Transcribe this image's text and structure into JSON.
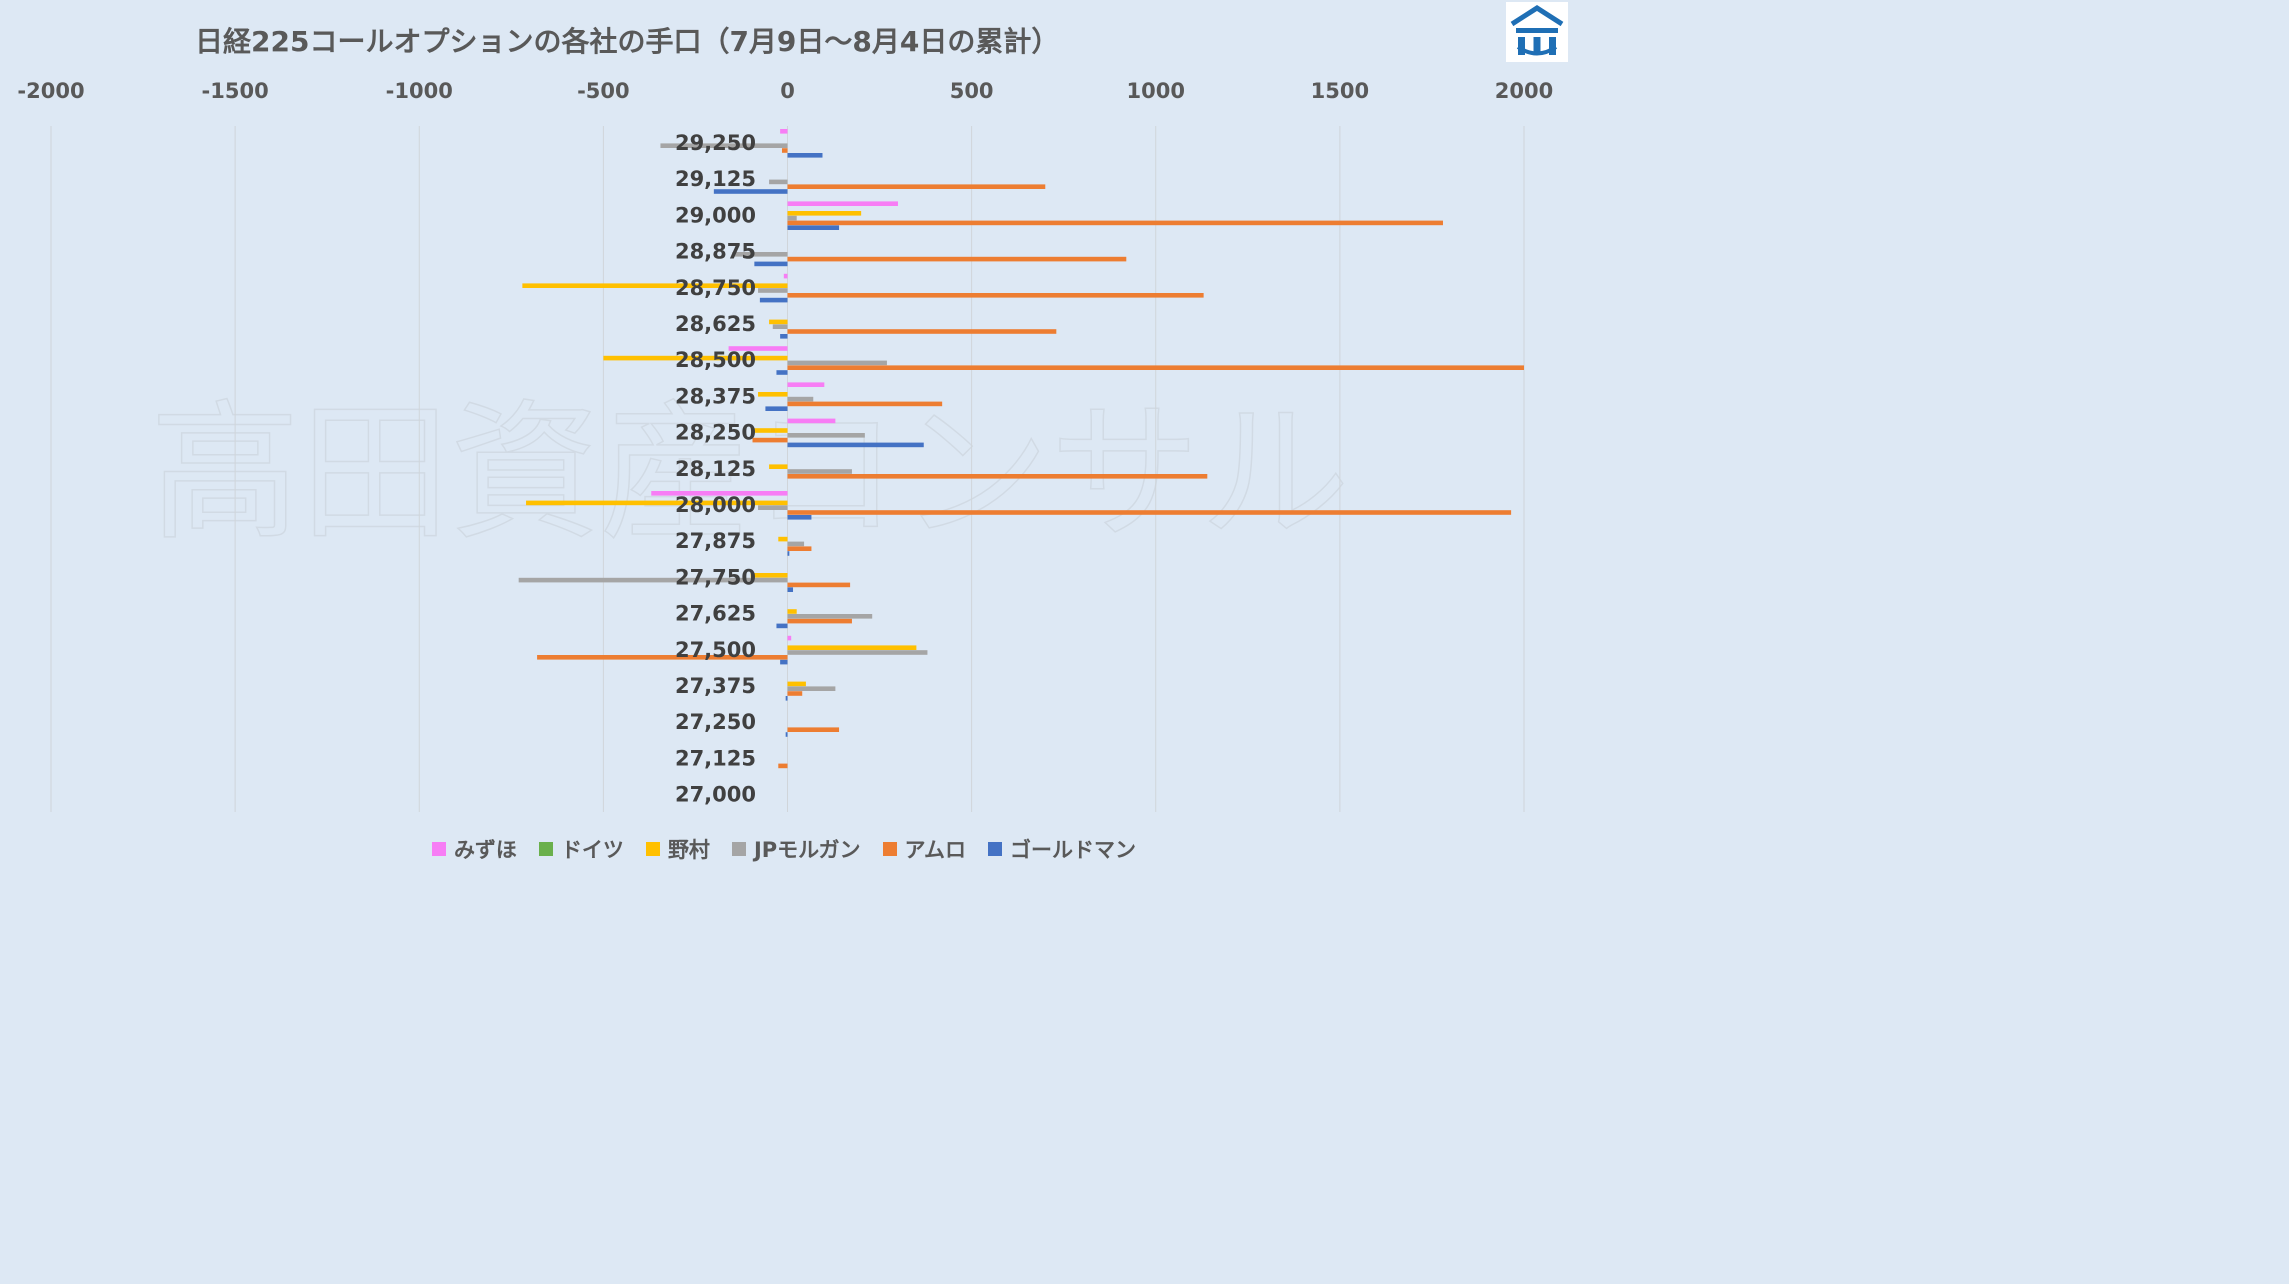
{
  "chart_data": {
    "type": "bar",
    "orientation": "horizontal",
    "title": "日経225コールオプションの各社の手口（7月9日～8月4日の累計）",
    "watermark": "高田資産コンサル",
    "xlim": [
      -2000,
      2000
    ],
    "x_ticks": [
      "-2000",
      "-1500",
      "-1000",
      "-500",
      "0",
      "500",
      "1000",
      "1500",
      "2000"
    ],
    "grid": true,
    "legend_position": "bottom",
    "categories": [
      "29,250",
      "29,125",
      "29,000",
      "28,875",
      "28,750",
      "28,625",
      "28,500",
      "28,375",
      "28,250",
      "28,125",
      "28,000",
      "27,875",
      "27,750",
      "27,625",
      "27,500",
      "27,375",
      "27,250",
      "27,125",
      "27,000"
    ],
    "series": [
      {
        "name": "みずほ",
        "color": "#f77df5",
        "values": [
          -20,
          0,
          300,
          0,
          -10,
          0,
          -160,
          100,
          130,
          0,
          -370,
          0,
          0,
          0,
          10,
          0,
          0,
          0,
          0
        ]
      },
      {
        "name": "ドイツ",
        "color": "#6ab04c",
        "values": [
          0,
          0,
          0,
          0,
          0,
          0,
          0,
          0,
          0,
          0,
          0,
          0,
          0,
          0,
          0,
          0,
          0,
          0,
          0
        ]
      },
      {
        "name": "野村",
        "color": "#ffc000",
        "values": [
          0,
          0,
          200,
          0,
          -720,
          -50,
          -500,
          -80,
          -90,
          -50,
          -710,
          -25,
          -100,
          25,
          350,
          50,
          0,
          0,
          0
        ]
      },
      {
        "name": "JPモルガン",
        "color": "#a5a5a5",
        "values": [
          -345,
          -50,
          25,
          -150,
          -80,
          -40,
          270,
          70,
          210,
          175,
          -80,
          45,
          -730,
          230,
          380,
          130,
          0,
          0,
          0
        ]
      },
      {
        "name": "アムロ",
        "color": "#ed7d31",
        "values": [
          -15,
          700,
          1780,
          920,
          1130,
          730,
          2000,
          420,
          -95,
          1140,
          1965,
          65,
          170,
          175,
          -680,
          40,
          140,
          -25,
          0
        ]
      },
      {
        "name": "ゴールドマン",
        "color": "#4472c4",
        "values": [
          95,
          -200,
          140,
          -90,
          -75,
          -20,
          -30,
          -60,
          370,
          0,
          65,
          5,
          15,
          -30,
          -20,
          -5,
          -5,
          0,
          0
        ]
      }
    ]
  }
}
